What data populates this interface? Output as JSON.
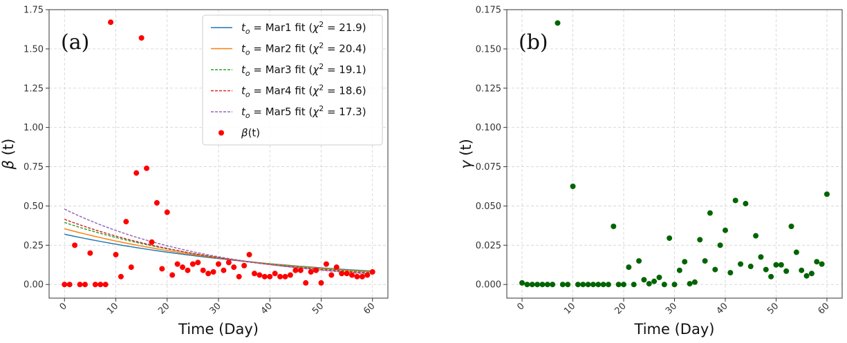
{
  "chart_data": [
    {
      "type": "scatter",
      "panel_label": "(a)",
      "xlabel": "Time (Day)",
      "ylabel_symbol": "β",
      "ylabel_suffix": " (t)",
      "xlim": [
        -3,
        63
      ],
      "ylim": [
        -0.087,
        1.75
      ],
      "xticks": [
        0,
        10,
        20,
        30,
        40,
        50,
        60
      ],
      "yticks": [
        0,
        0.25,
        0.5,
        0.75,
        1.0,
        1.25,
        1.5,
        1.75
      ],
      "ytick_labels": [
        "0.00",
        "0.25",
        "0.50",
        "0.75",
        "1.00",
        "1.25",
        "1.50",
        "1.75"
      ],
      "grid": true,
      "legend_position": "top-right",
      "scatter_series": {
        "name_symbol": "β",
        "name_suffix": "(t)",
        "color": "#ff0000",
        "x": [
          0,
          1,
          2,
          3,
          4,
          5,
          6,
          7,
          8,
          9,
          10,
          11,
          12,
          13,
          14,
          15,
          16,
          17,
          18,
          19,
          20,
          21,
          22,
          23,
          24,
          25,
          26,
          27,
          28,
          29,
          30,
          31,
          32,
          33,
          34,
          35,
          36,
          37,
          38,
          39,
          40,
          41,
          42,
          43,
          44,
          45,
          46,
          47,
          48,
          49,
          50,
          51,
          52,
          53,
          54,
          55,
          56,
          57,
          58,
          59,
          60
        ],
        "y": [
          0,
          0,
          0.25,
          0,
          0,
          0.2,
          0,
          0,
          0,
          1.67,
          0.19,
          0.05,
          0.4,
          0.11,
          0.71,
          1.57,
          0.74,
          0.27,
          0.52,
          0.1,
          0.46,
          0.06,
          0.13,
          0.11,
          0.09,
          0.13,
          0.14,
          0.09,
          0.07,
          0.08,
          0.13,
          0.09,
          0.14,
          0.11,
          0.05,
          0.12,
          0.19,
          0.07,
          0.06,
          0.05,
          0.05,
          0.07,
          0.05,
          0.05,
          0.06,
          0.09,
          0.09,
          0.01,
          0.08,
          0.09,
          0.01,
          0.13,
          0.06,
          0.11,
          0.07,
          0.07,
          0.06,
          0.05,
          0.05,
          0.06,
          0.08
        ]
      },
      "fit_series": [
        {
          "name_prefix": "t",
          "name_sub": "o",
          "name_middle": " = Mar1 fit (",
          "name_chi": "χ",
          "name_exp": "2",
          "name_end": " = 21.9)",
          "color": "#1f77b4",
          "dash": "solid",
          "x_start": 0,
          "x_end": 60,
          "y_start": 0.32,
          "y_end": 0.085
        },
        {
          "name_prefix": "t",
          "name_sub": "o",
          "name_middle": " = Mar2 fit (",
          "name_chi": "χ",
          "name_exp": "2",
          "name_end": " = 20.4)",
          "color": "#ff7f0e",
          "dash": "solid",
          "x_start": 0,
          "x_end": 60,
          "y_start": 0.355,
          "y_end": 0.08
        },
        {
          "name_prefix": "t",
          "name_sub": "o",
          "name_middle": " = Mar3 fit (",
          "name_chi": "χ",
          "name_exp": "2",
          "name_end": " = 19.1)",
          "color": "#2ca02c",
          "dash": "dashed",
          "x_start": 0,
          "x_end": 60,
          "y_start": 0.395,
          "y_end": 0.075
        },
        {
          "name_prefix": "t",
          "name_sub": "o",
          "name_middle": " = Mar4 fit (",
          "name_chi": "χ",
          "name_exp": "2",
          "name_end": " = 18.6)",
          "color": "#d62728",
          "dash": "dashed",
          "x_start": 0,
          "x_end": 60,
          "y_start": 0.415,
          "y_end": 0.07
        },
        {
          "name_prefix": "t",
          "name_sub": "o",
          "name_middle": " = Mar5 fit (",
          "name_chi": "χ",
          "name_exp": "2",
          "name_end": " = 17.3)",
          "color": "#9467bd",
          "dash": "dashed",
          "x_start": 0,
          "x_end": 60,
          "y_start": 0.48,
          "y_end": 0.065
        }
      ]
    },
    {
      "type": "scatter",
      "panel_label": "(b)",
      "xlabel": "Time (Day)",
      "ylabel_symbol": "γ",
      "ylabel_suffix": " (t)",
      "xlim": [
        -3,
        63
      ],
      "ylim": [
        -0.0087,
        0.175
      ],
      "xticks": [
        0,
        10,
        20,
        30,
        40,
        50,
        60
      ],
      "yticks": [
        0,
        0.025,
        0.05,
        0.075,
        0.1,
        0.125,
        0.15,
        0.175
      ],
      "ytick_labels": [
        "0.000",
        "0.025",
        "0.050",
        "0.075",
        "0.100",
        "0.125",
        "0.150",
        "0.175"
      ],
      "grid": true,
      "scatter_series": {
        "color": "#006400",
        "x": [
          0,
          1,
          2,
          3,
          4,
          5,
          6,
          7,
          8,
          9,
          10,
          11,
          12,
          13,
          14,
          15,
          16,
          17,
          18,
          19,
          20,
          21,
          22,
          23,
          24,
          25,
          26,
          27,
          28,
          29,
          30,
          31,
          32,
          33,
          34,
          35,
          36,
          37,
          38,
          39,
          40,
          41,
          42,
          43,
          44,
          45,
          46,
          47,
          48,
          49,
          50,
          51,
          52,
          53,
          54,
          55,
          56,
          57,
          58,
          59,
          60
        ],
        "y": [
          0.001,
          0,
          0,
          0,
          0,
          0,
          0,
          0.1665,
          0,
          0,
          0.0625,
          0,
          0,
          0,
          0,
          0,
          0,
          0,
          0.037,
          0,
          0,
          0.011,
          0,
          0.015,
          0.003,
          0.0005,
          0.002,
          0.0045,
          0,
          0.0295,
          0,
          0.009,
          0.0145,
          0.0005,
          0.0015,
          0.0285,
          0.015,
          0.0455,
          0.0095,
          0.025,
          0.0345,
          0.0075,
          0.0535,
          0.013,
          0.0515,
          0.0115,
          0.031,
          0.0175,
          0.0095,
          0.005,
          0.0125,
          0.0125,
          0.0085,
          0.037,
          0.0205,
          0.009,
          0.0055,
          0.007,
          0.0145,
          0.013,
          0.0575
        ]
      }
    }
  ]
}
